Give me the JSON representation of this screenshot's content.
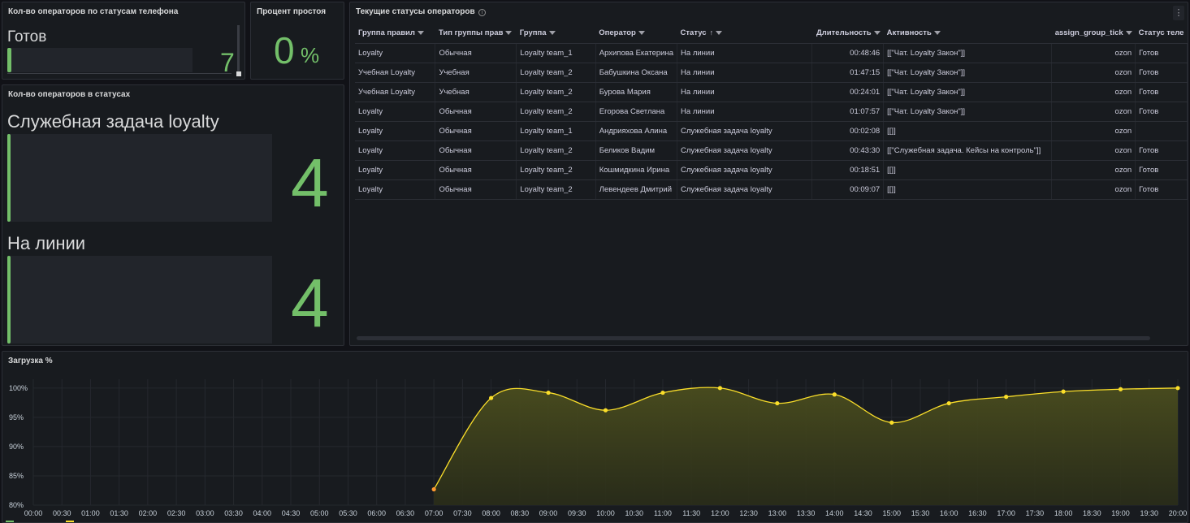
{
  "panels": {
    "phone_status": {
      "title": "Кол-во операторов по статусам телефона",
      "label": "Готов",
      "value": "7",
      "fill_fraction": 1
    },
    "idle": {
      "title": "Процент простоя",
      "value": "0",
      "unit": "%"
    },
    "status_counts": {
      "title": "Кол-во операторов в статусах",
      "items": [
        {
          "label": "Служебная задача loyalty",
          "value": "4"
        },
        {
          "label": "На линии",
          "value": "4"
        }
      ]
    },
    "table": {
      "title": "Текущие статусы операторов",
      "columns": [
        "Группа правил",
        "Тип группы прав",
        "Группа",
        "Оператор",
        "Статус",
        "Длительность",
        "Активность",
        "assign_group_tick",
        "Статус теле"
      ],
      "rows": [
        [
          "Loyalty",
          "Обычная",
          "Loyalty team_1",
          "Архипова Екатерина",
          "На линии",
          "00:48:46",
          "[[\"Чат. Loyalty Закон\"]]",
          "ozon",
          "Готов"
        ],
        [
          "Учебная Loyalty",
          "Учебная",
          "Loyalty team_2",
          "Бабушкина Оксана",
          "На линии",
          "01:47:15",
          "[[\"Чат. Loyalty Закон\"]]",
          "ozon",
          "Готов"
        ],
        [
          "Учебная Loyalty",
          "Учебная",
          "Loyalty team_2",
          "Бурова Мария",
          "На линии",
          "00:24:01",
          "[[\"Чат. Loyalty Закон\"]]",
          "ozon",
          "Готов"
        ],
        [
          "Loyalty",
          "Обычная",
          "Loyalty team_2",
          "Егорова Светлана",
          "На линии",
          "01:07:57",
          "[[\"Чат. Loyalty Закон\"]]",
          "ozon",
          "Готов"
        ],
        [
          "Loyalty",
          "Обычная",
          "Loyalty team_1",
          "Андрияхова Алина",
          "Служебная задача loyalty",
          "00:02:08",
          "[[]]",
          "ozon",
          ""
        ],
        [
          "Loyalty",
          "Обычная",
          "Loyalty team_2",
          "Беликов Вадим",
          "Служебная задача loyalty",
          "00:43:30",
          "[[\"Служебная задача. Кейсы на контроль\"]]",
          "ozon",
          "Готов"
        ],
        [
          "Loyalty",
          "Обычная",
          "Loyalty team_2",
          "Кошмидкина Ирина",
          "Служебная задача loyalty",
          "00:18:51",
          "[[]]",
          "ozon",
          "Готов"
        ],
        [
          "Loyalty",
          "Обычная",
          "Loyalty team_2",
          "Левендеев Дмитрий",
          "Служебная задача loyalty",
          "00:09:07",
          "[[]]",
          "ozon",
          "Готов"
        ]
      ]
    },
    "load": {
      "title": "Загрузка %"
    }
  },
  "colors": {
    "green": "#73bf69",
    "yellow": "#fade2a",
    "orange": "#ff9830"
  },
  "chart_data": {
    "type": "area",
    "title": "Загрузка %",
    "x": [
      "00:00",
      "00:30",
      "01:00",
      "01:30",
      "02:00",
      "02:30",
      "03:00",
      "03:30",
      "04:00",
      "04:30",
      "05:00",
      "05:30",
      "06:00",
      "06:30",
      "07:00",
      "07:30",
      "08:00",
      "08:30",
      "09:00",
      "09:30",
      "10:00",
      "10:30",
      "11:00",
      "11:30",
      "12:00",
      "12:30",
      "13:00",
      "13:30",
      "14:00",
      "14:30",
      "15:00",
      "15:30",
      "16:00",
      "16:30",
      "17:00",
      "17:30",
      "18:00",
      "18:30",
      "19:00",
      "19:30",
      "20:00"
    ],
    "y_ticks": [
      "100%",
      "95%",
      "90%",
      "85%",
      "80%"
    ],
    "ylim": [
      80,
      101.5
    ],
    "grid": true,
    "legend_position": "bottom-left",
    "series": [
      {
        "points": [
          {
            "x": "07:00",
            "y": 82.7
          },
          {
            "x": "08:00",
            "y": 98.3
          },
          {
            "x": "09:00",
            "y": 99.2
          },
          {
            "x": "10:00",
            "y": 96.2
          },
          {
            "x": "11:00",
            "y": 99.2
          },
          {
            "x": "12:00",
            "y": 100
          },
          {
            "x": "13:00",
            "y": 97.4
          },
          {
            "x": "14:00",
            "y": 98.9
          },
          {
            "x": "15:00",
            "y": 94.1
          },
          {
            "x": "16:00",
            "y": 97.4
          },
          {
            "x": "17:00",
            "y": 98.5
          },
          {
            "x": "18:00",
            "y": 99.4
          },
          {
            "x": "19:00",
            "y": 99.8
          },
          {
            "x": "20:00",
            "y": 100
          }
        ]
      }
    ]
  }
}
